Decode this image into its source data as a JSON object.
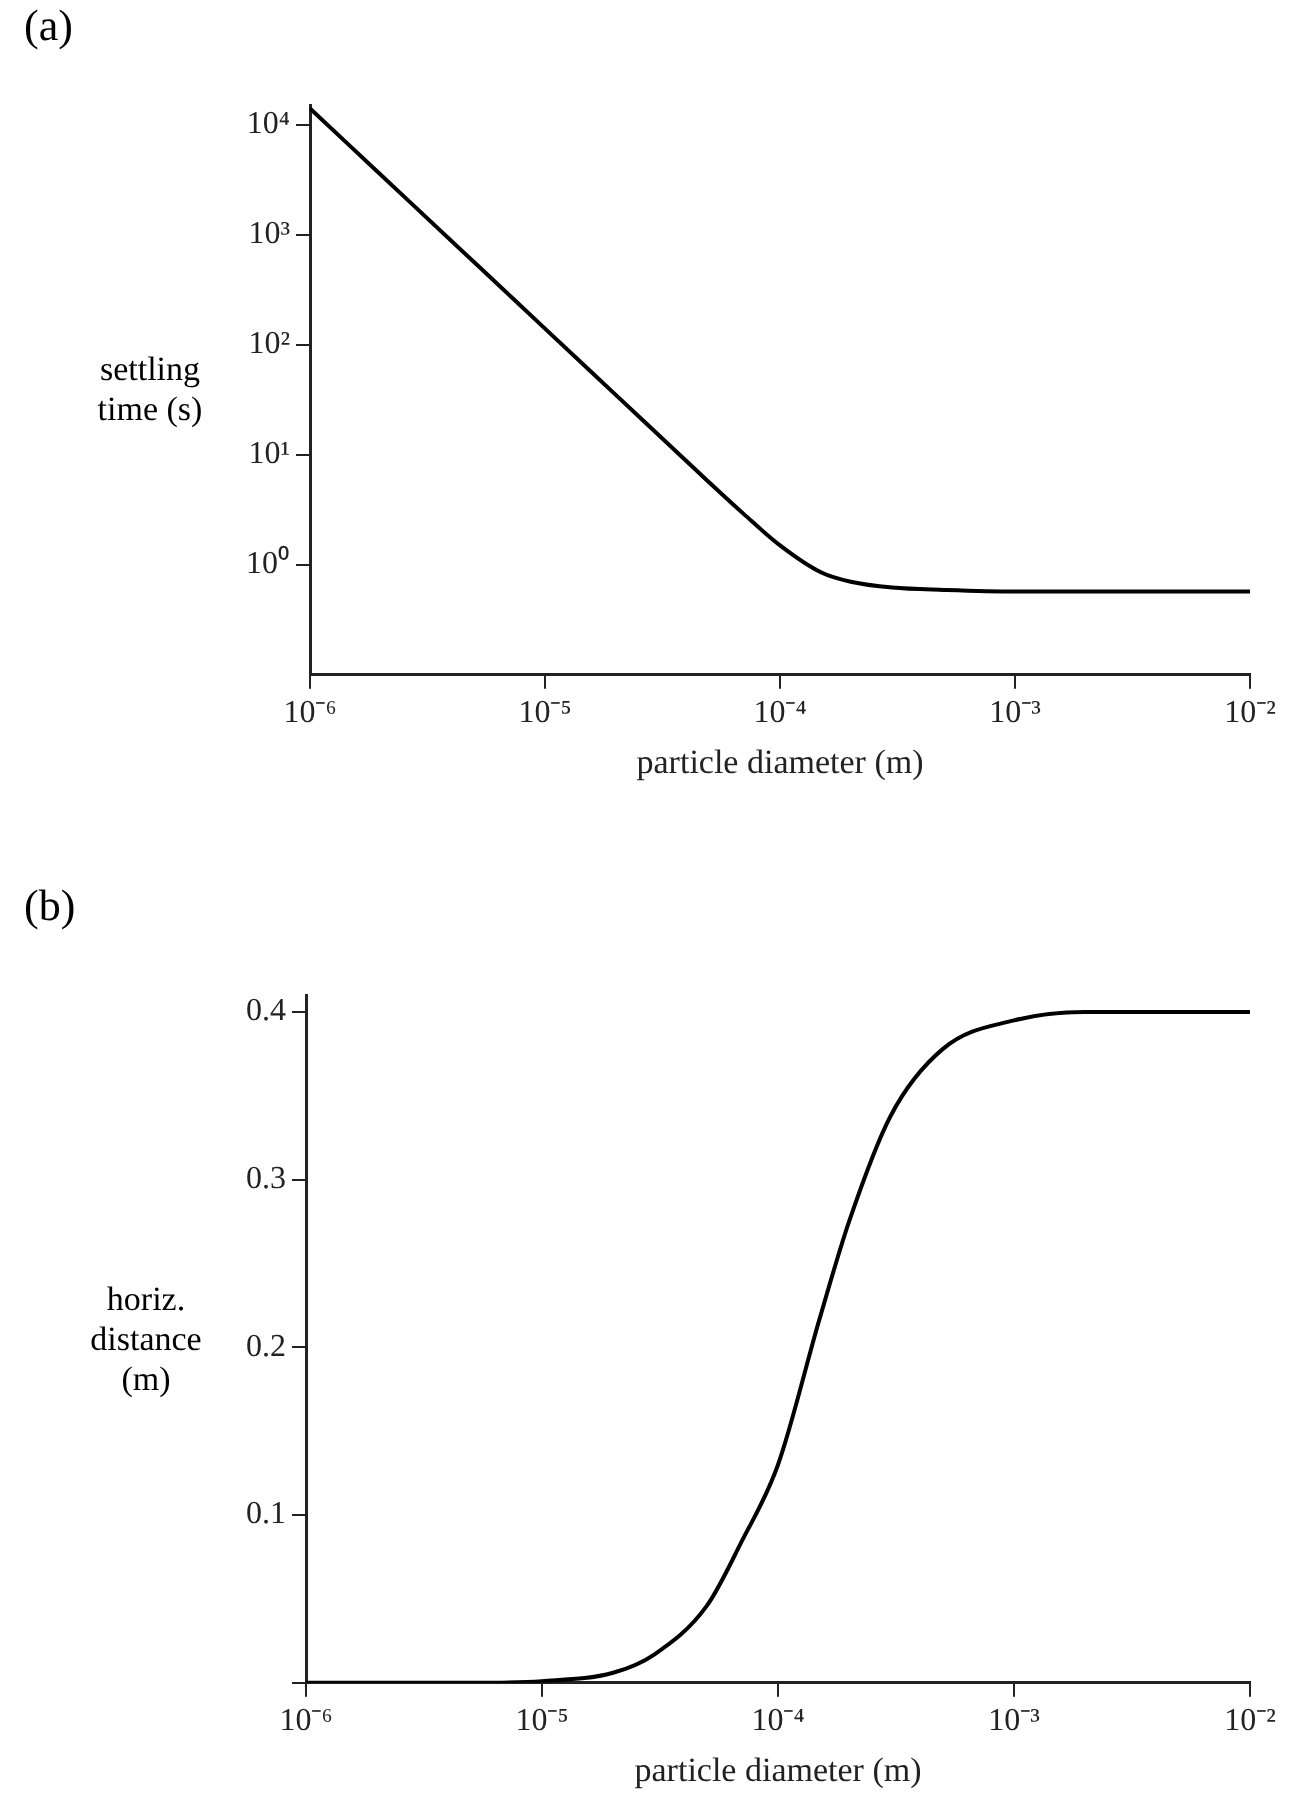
{
  "chart_data": [
    {
      "type": "line",
      "title": "(a)",
      "xlabel": "particle diameter (m)",
      "ylabel": "settling time (s)",
      "log": "xy",
      "grid": false,
      "legend": false,
      "marker": "none",
      "line_style": "solid",
      "xlim": [
        1e-06,
        0.01
      ],
      "xticks": [
        {
          "value": 1e-06,
          "label": "10⁻⁶"
        },
        {
          "value": 1e-05,
          "label": "10⁻⁵"
        },
        {
          "value": 0.0001,
          "label": "10⁻⁴"
        },
        {
          "value": 0.001,
          "label": "10⁻³"
        },
        {
          "value": 0.01,
          "label": "10⁻²"
        }
      ],
      "ylim": [
        0.1,
        15000
      ],
      "yticks": [
        {
          "value": 1,
          "label": "10⁰"
        },
        {
          "value": 10,
          "label": "10¹"
        },
        {
          "value": 100,
          "label": "10²"
        },
        {
          "value": 1000,
          "label": "10³"
        },
        {
          "value": 10000,
          "label": "10⁴"
        }
      ],
      "x": [
        1e-06,
        2e-06,
        5e-06,
        1e-05,
        2e-05,
        5e-05,
        7e-05,
        0.0001,
        0.00015,
        0.0002,
        0.0003,
        0.0005,
        0.001,
        0.01
      ],
      "series": [
        {
          "color": "#000000",
          "values": [
            14000,
            3500,
            560,
            140,
            35,
            5.6,
            2.9,
            1.5,
            0.85,
            0.7,
            0.62,
            0.59,
            0.57,
            0.57
          ]
        }
      ]
    },
    {
      "type": "line",
      "title": "(b)",
      "xlabel": "particle diameter (m)",
      "ylabel": "horiz. distance (m)",
      "log": "x",
      "grid": false,
      "legend": false,
      "marker": "none",
      "line_style": "solid",
      "xlim": [
        1e-06,
        0.01
      ],
      "xticks": [
        {
          "value": 1e-06,
          "label": "10⁻⁶"
        },
        {
          "value": 1e-05,
          "label": "10⁻⁵"
        },
        {
          "value": 0.0001,
          "label": "10⁻⁴"
        },
        {
          "value": 0.001,
          "label": "10⁻³"
        },
        {
          "value": 0.01,
          "label": "10⁻²"
        }
      ],
      "ylim": [
        0,
        0.41
      ],
      "yticks": [
        {
          "value": 0,
          "label": null
        },
        0.1,
        0.2,
        0.3,
        0.4
      ],
      "x": [
        1e-06,
        5e-06,
        1e-05,
        2e-05,
        3e-05,
        5e-05,
        7e-05,
        0.0001,
        0.00015,
        0.0002,
        0.0003,
        0.0005,
        0.001,
        0.002,
        0.01
      ],
      "series": [
        {
          "color": "#000000",
          "values": [
            0,
            0,
            0.001,
            0.006,
            0.017,
            0.046,
            0.084,
            0.13,
            0.217,
            0.275,
            0.338,
            0.378,
            0.395,
            0.4,
            0.4
          ]
        }
      ]
    }
  ]
}
